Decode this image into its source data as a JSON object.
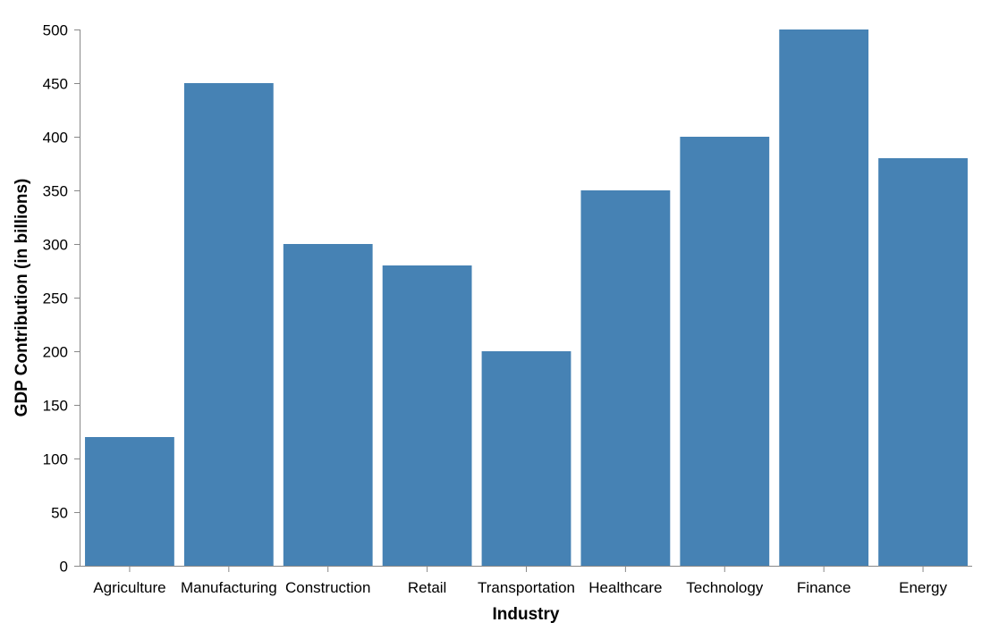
{
  "chart_data": {
    "type": "bar",
    "categories": [
      "Agriculture",
      "Manufacturing",
      "Construction",
      "Retail",
      "Transportation",
      "Healthcare",
      "Technology",
      "Finance",
      "Energy"
    ],
    "values": [
      120,
      450,
      300,
      280,
      200,
      350,
      400,
      500,
      380
    ],
    "title": "",
    "xlabel": "Industry",
    "ylabel": "GDP Contribution (in billions)",
    "ylim": [
      0,
      500
    ],
    "yticks": [
      0,
      50,
      100,
      150,
      200,
      250,
      300,
      350,
      400,
      450,
      500
    ],
    "grid": false,
    "bar_color": "#4682b4",
    "axis_color": "#888888"
  }
}
